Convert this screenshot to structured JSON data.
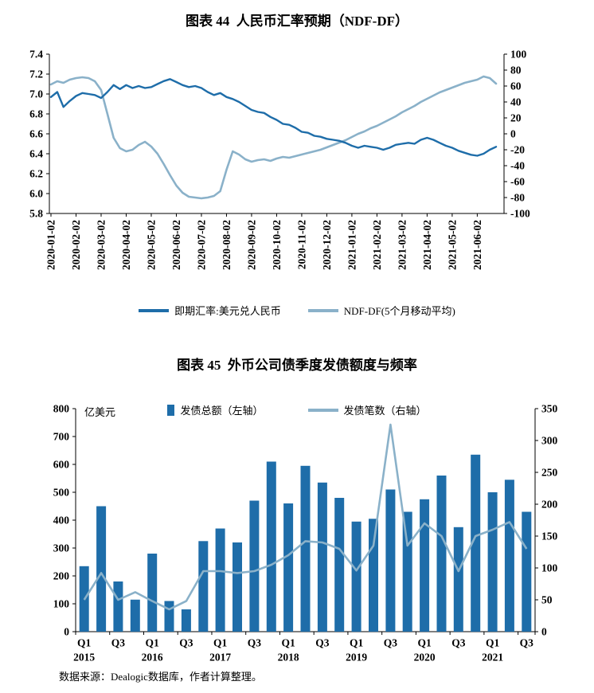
{
  "colors": {
    "dark": "#1e6da9",
    "light": "#8ab1c9",
    "axis": "#000000"
  },
  "chart_data": [
    {
      "id": "figure-44",
      "type": "line",
      "title": "图表 44  人民币汇率预期（NDF-DF）",
      "left_axis": {
        "min": 5.8,
        "max": 7.4,
        "tick_labels": [
          "7.4",
          "7.2",
          "7.0",
          "6.8",
          "6.6",
          "6.4",
          "6.2",
          "6.0",
          "5.8"
        ]
      },
      "right_axis": {
        "min": -100,
        "max": 100,
        "tick_labels": [
          "100",
          "80",
          "60",
          "40",
          "20",
          "0",
          "-20",
          "-40",
          "-60",
          "-80",
          "-100"
        ]
      },
      "x_tick_labels": [
        "2020-01-02",
        "2020-02-02",
        "2020-03-02",
        "2020-04-02",
        "2020-05-02",
        "2020-06-02",
        "2020-07-02",
        "2020-08-02",
        "2020-09-02",
        "2020-10-02",
        "2020-11-02",
        "2020-12-02",
        "2021-01-02",
        "2021-02-02",
        "2021-03-02",
        "2021-04-02",
        "2021-05-02",
        "2021-06-02"
      ],
      "points_per_month": 4,
      "legend_position": "bottom",
      "series": [
        {
          "name": "即期汇率:美元兑人民币",
          "axis": "left",
          "color": "dark",
          "values": [
            6.97,
            7.02,
            6.87,
            6.93,
            6.98,
            7.01,
            7.0,
            6.99,
            6.96,
            7.02,
            7.09,
            7.05,
            7.09,
            7.06,
            7.08,
            7.06,
            7.07,
            7.1,
            7.13,
            7.15,
            7.12,
            7.09,
            7.07,
            7.08,
            7.06,
            7.02,
            6.99,
            7.01,
            6.97,
            6.95,
            6.92,
            6.88,
            6.84,
            6.82,
            6.81,
            6.77,
            6.74,
            6.7,
            6.69,
            6.66,
            6.62,
            6.61,
            6.58,
            6.57,
            6.55,
            6.54,
            6.53,
            6.51,
            6.48,
            6.46,
            6.48,
            6.47,
            6.46,
            6.44,
            6.46,
            6.49,
            6.5,
            6.51,
            6.5,
            6.54,
            6.56,
            6.54,
            6.51,
            6.48,
            6.46,
            6.43,
            6.41,
            6.39,
            6.38,
            6.4,
            6.44,
            6.47
          ]
        },
        {
          "name": "NDF-DF(5个月移动平均)",
          "axis": "right",
          "color": "light",
          "values": [
            62,
            66,
            64,
            68,
            70,
            71,
            70,
            66,
            55,
            25,
            -5,
            -18,
            -22,
            -20,
            -14,
            -10,
            -16,
            -25,
            -38,
            -52,
            -65,
            -74,
            -79,
            -80,
            -81,
            -80,
            -78,
            -72,
            -45,
            -22,
            -26,
            -32,
            -35,
            -33,
            -32,
            -34,
            -31,
            -29,
            -30,
            -28,
            -26,
            -24,
            -22,
            -20,
            -17,
            -14,
            -11,
            -8,
            -4,
            0,
            3,
            7,
            10,
            14,
            18,
            22,
            27,
            31,
            35,
            40,
            44,
            48,
            52,
            55,
            58,
            61,
            64,
            66,
            68,
            72,
            70,
            63
          ]
        }
      ]
    },
    {
      "id": "figure-45",
      "type": "bar+line",
      "title": "图表 45  外币公司债季度发债额度与频率",
      "unit_label": "亿美元",
      "left_axis": {
        "min": 0,
        "max": 800,
        "tick_labels": [
          "800",
          "700",
          "600",
          "500",
          "400",
          "300",
          "200",
          "100",
          "0"
        ]
      },
      "right_axis": {
        "min": 0,
        "max": 350,
        "tick_labels": [
          "350",
          "300",
          "250",
          "200",
          "150",
          "100",
          "50",
          "0"
        ]
      },
      "quarter_tick_labels": [
        "Q1",
        "Q3",
        "Q1",
        "Q3",
        "Q1",
        "Q3",
        "Q1",
        "Q3",
        "Q1",
        "Q3",
        "Q1",
        "Q3",
        "Q1",
        "Q3"
      ],
      "year_labels": [
        "2015",
        "2016",
        "2017",
        "2018",
        "2019",
        "2020",
        "2021"
      ],
      "bars": {
        "name": "发债总额（左轴）",
        "axis": "left",
        "color": "dark",
        "values": [
          235,
          450,
          180,
          115,
          280,
          110,
          80,
          325,
          370,
          320,
          470,
          610,
          460,
          595,
          535,
          480,
          395,
          405,
          510,
          430,
          475,
          560,
          375,
          635,
          500,
          545,
          430
        ]
      },
      "line": {
        "name": "发债笔数（右轴）",
        "axis": "right",
        "color": "light",
        "values": [
          50,
          92,
          50,
          62,
          48,
          35,
          48,
          95,
          95,
          92,
          95,
          105,
          120,
          142,
          140,
          130,
          96,
          135,
          325,
          135,
          170,
          150,
          95,
          150,
          160,
          172,
          130
        ]
      },
      "source": "数据来源：Dealogic数据库，作者计算整理。"
    }
  ]
}
